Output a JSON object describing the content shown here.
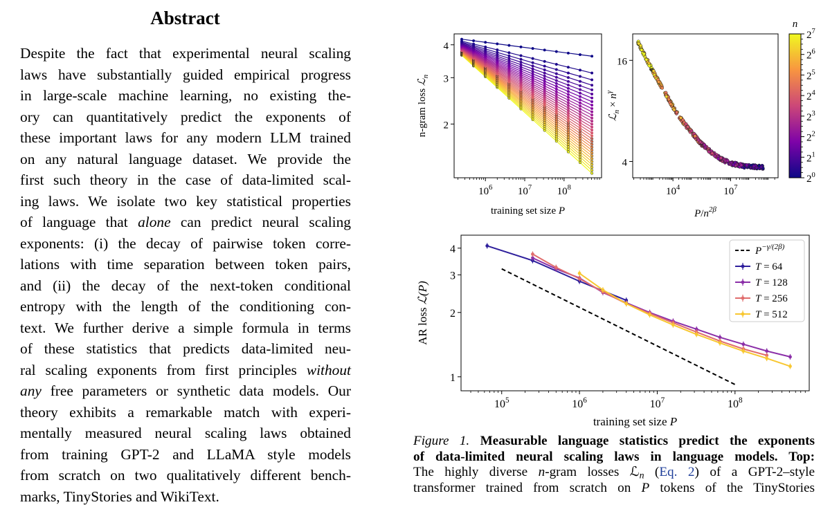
{
  "abstract": {
    "title": "Abstract",
    "lines": [
      {
        "parts": [
          {
            "t": "Despite the fact that experimental neural scaling"
          }
        ]
      },
      {
        "parts": [
          {
            "t": "laws have substantially guided empirical progress"
          }
        ]
      },
      {
        "parts": [
          {
            "t": "in large-scale machine learning, no existing the-"
          }
        ]
      },
      {
        "parts": [
          {
            "t": "ory can quantitatively predict the exponents of"
          }
        ]
      },
      {
        "parts": [
          {
            "t": "these important laws for any modern LLM trained"
          }
        ]
      },
      {
        "parts": [
          {
            "t": "on any natural language dataset. We provide the"
          }
        ]
      },
      {
        "parts": [
          {
            "t": "first such theory in the case of data-limited scal-"
          }
        ]
      },
      {
        "parts": [
          {
            "t": "ing laws. We isolate two key statistical properties"
          }
        ]
      },
      {
        "parts": [
          {
            "t": "of language that "
          },
          {
            "t": "alone",
            "i": true
          },
          {
            "t": " can predict neural scaling"
          }
        ]
      },
      {
        "parts": [
          {
            "t": "exponents: (i) the decay of pairwise token corre-"
          }
        ]
      },
      {
        "parts": [
          {
            "t": "lations with time separation between token pairs,"
          }
        ]
      },
      {
        "parts": [
          {
            "t": "and (ii) the decay of the next-token conditional"
          }
        ]
      },
      {
        "parts": [
          {
            "t": "entropy with the length of the conditioning con-"
          }
        ]
      },
      {
        "parts": [
          {
            "t": "text. We further derive a simple formula in terms"
          }
        ]
      },
      {
        "parts": [
          {
            "t": "of these statistics that predicts data-limited neu-"
          }
        ]
      },
      {
        "parts": [
          {
            "t": "ral scaling exponents from first principles "
          },
          {
            "t": "without",
            "i": true
          }
        ]
      },
      {
        "parts": [
          {
            "t": "any",
            "i": true
          },
          {
            "t": " free parameters or synthetic data models. Our"
          }
        ]
      },
      {
        "parts": [
          {
            "t": "theory exhibits a remarkable match with experi-"
          }
        ]
      },
      {
        "parts": [
          {
            "t": "mentally measured neural scaling laws obtained"
          }
        ]
      },
      {
        "parts": [
          {
            "t": "from training GPT-2 and LLaMA style models"
          }
        ]
      },
      {
        "parts": [
          {
            "t": "from scratch on two qualitatively different bench-"
          }
        ]
      },
      {
        "parts": [
          {
            "t": "marks, TinyStories and WikiText."
          }
        ]
      }
    ]
  },
  "caption": {
    "lines": [
      {
        "parts": [
          {
            "t": "Figure 1.",
            "i": true
          },
          {
            "t": " "
          },
          {
            "t": "Measurable language statistics predict the exponents",
            "b": true
          }
        ]
      },
      {
        "parts": [
          {
            "t": "of data-limited neural scaling laws in language models. Top:",
            "b": true
          }
        ]
      },
      {
        "parts": [
          {
            "t": "The highly diverse "
          },
          {
            "t": "n",
            "i": true
          },
          {
            "t": "-gram losses ℒ"
          },
          {
            "t": "n",
            "i": true,
            "sub": true
          },
          {
            "t": " ("
          },
          {
            "t": "Eq. 2",
            "link": true
          },
          {
            "t": ") of a GPT-2–style"
          }
        ]
      },
      {
        "parts": [
          {
            "t": "transformer trained from scratch on "
          },
          {
            "t": "P",
            "i": true
          },
          {
            "t": " tokens of the TinyStories"
          }
        ]
      }
    ]
  },
  "chart_data": [
    {
      "type": "line",
      "panel": "top-left",
      "xlabel": "training set size P",
      "ylabel": "n-gram loss ℒ_n",
      "xscale": "log",
      "yscale": "log",
      "xlim": [
        160000,
        900000000
      ],
      "ylim": [
        1.25,
        4.4
      ],
      "xticks": [
        {
          "v": 1000000,
          "label": "10^6"
        },
        {
          "v": 10000000,
          "label": "10^7"
        },
        {
          "v": 100000000,
          "label": "10^8"
        }
      ],
      "yticks": [
        {
          "v": 2,
          "label": "2"
        },
        {
          "v": 3,
          "label": "3"
        },
        {
          "v": 4,
          "label": "4"
        }
      ],
      "x_points": [
        250000,
        500000,
        1000000,
        2000000,
        4000000,
        8000000,
        16000000,
        32000000,
        64000000,
        128000000,
        256000000,
        512000000
      ],
      "n_curves": 32,
      "start_range": [
        4.2,
        3.65
      ],
      "end_range": [
        3.62,
        1.3
      ],
      "colormap": "plasma",
      "colorbar": {
        "label": "n",
        "ticks": [
          "2^0",
          "2^1",
          "2^2",
          "2^3",
          "2^4",
          "2^5",
          "2^6",
          "2^7"
        ]
      }
    },
    {
      "type": "scatter",
      "panel": "top-right",
      "xlabel": "P / n^{2β}",
      "ylabel": "ℒ_n × n^γ",
      "xscale": "log",
      "yscale": "log",
      "xlim": [
        80,
        3000000000
      ],
      "ylim": [
        3.2,
        23
      ],
      "xticks": [
        {
          "v": 10000,
          "label": "10^4"
        },
        {
          "v": 10000000,
          "label": "10^7"
        }
      ],
      "yticks": [
        {
          "v": 4,
          "label": "4"
        },
        {
          "v": 16,
          "label": "16"
        }
      ],
      "collapse_curve": [
        [
          150,
          20.5
        ],
        [
          400,
          16.5
        ],
        [
          1000,
          13.5
        ],
        [
          3000,
          10.8
        ],
        [
          10000,
          8.5
        ],
        [
          30000,
          7.0
        ],
        [
          100000,
          5.9
        ],
        [
          300000,
          5.1
        ],
        [
          1000000,
          4.55
        ],
        [
          3000000,
          4.15
        ],
        [
          10000000,
          3.9
        ],
        [
          50000000,
          3.75
        ],
        [
          500000000,
          3.7
        ]
      ]
    },
    {
      "type": "line",
      "panel": "bottom",
      "xlabel": "training set size P",
      "ylabel": "AR loss ℒ(P)",
      "xscale": "log",
      "yscale": "log",
      "xlim": [
        30000,
        900000000
      ],
      "ylim": [
        0.86,
        4.6
      ],
      "xticks": [
        {
          "v": 100000,
          "label": "10^5"
        },
        {
          "v": 1000000,
          "label": "10^6"
        },
        {
          "v": 10000000,
          "label": "10^7"
        },
        {
          "v": 100000000,
          "label": "10^8"
        }
      ],
      "yticks": [
        {
          "v": 1,
          "label": "1"
        },
        {
          "v": 2,
          "label": "2"
        },
        {
          "v": 3,
          "label": "3"
        },
        {
          "v": 4,
          "label": "4"
        }
      ],
      "series": [
        {
          "name": "T = 64",
          "color": "#2e1f9c",
          "x": [
            65000,
            250000,
            1000000,
            4000000
          ],
          "y": [
            4.1,
            3.5,
            2.8,
            2.28
          ]
        },
        {
          "name": "T = 128",
          "color": "#8b2fa8",
          "x": [
            250000,
            500000,
            1000000,
            2000000,
            4000000,
            8000000,
            16000000,
            32000000,
            64000000,
            128000000,
            256000000,
            512000000
          ],
          "y": [
            3.6,
            3.2,
            2.9,
            2.48,
            2.22,
            2.0,
            1.82,
            1.67,
            1.53,
            1.42,
            1.32,
            1.24
          ]
        },
        {
          "name": "T = 256",
          "color": "#e06d6d",
          "x": [
            250000,
            500000,
            1000000,
            2000000,
            4000000,
            8000000,
            16000000,
            32000000,
            64000000,
            128000000,
            256000000
          ],
          "y": [
            3.75,
            3.25,
            2.88,
            2.5,
            2.2,
            1.98,
            1.79,
            1.62,
            1.47,
            1.35,
            1.26
          ]
        },
        {
          "name": "T = 512",
          "color": "#f8c731",
          "x": [
            1000000,
            2000000,
            4000000,
            8000000,
            16000000,
            32000000,
            64000000,
            128000000,
            256000000,
            512000000
          ],
          "y": [
            3.05,
            2.55,
            2.2,
            1.95,
            1.75,
            1.58,
            1.44,
            1.32,
            1.22,
            1.12
          ]
        },
        {
          "name": "P^{-γ/(2β)}",
          "color": "#000000",
          "dashed": true,
          "x": [
            100000,
            100000000
          ],
          "y": [
            3.2,
            0.92
          ]
        }
      ],
      "legend_position": "top-right"
    }
  ]
}
